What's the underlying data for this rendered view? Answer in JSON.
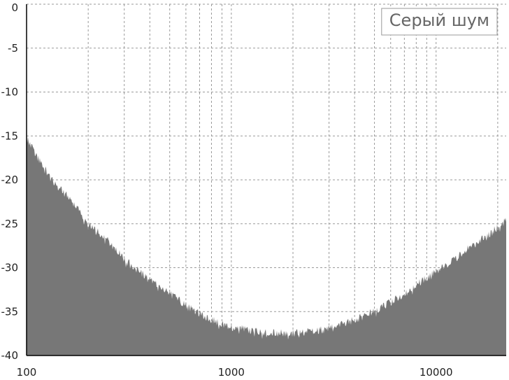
{
  "chart_data": {
    "type": "area",
    "legend": {
      "entries": [
        "Серый шум"
      ],
      "placement": "top-right"
    },
    "x_scale": "log",
    "xlim": [
      100,
      22000
    ],
    "ylim": [
      -40,
      0
    ],
    "grid": true,
    "x_ticks": [
      {
        "value": 100,
        "label": "100"
      },
      {
        "value": 1000,
        "label": "1000"
      },
      {
        "value": 10000,
        "label": "10000"
      }
    ],
    "y_ticks": [
      {
        "value": 0,
        "label": "0"
      },
      {
        "value": -5,
        "label": "-5"
      },
      {
        "value": -10,
        "label": "-10"
      },
      {
        "value": -15,
        "label": "-15"
      },
      {
        "value": -20,
        "label": "-20"
      },
      {
        "value": -25,
        "label": "-25"
      },
      {
        "value": -30,
        "label": "-30"
      },
      {
        "value": -35,
        "label": "-35"
      },
      {
        "value": -40,
        "label": "-40"
      }
    ],
    "series": [
      {
        "fill_color": "#777777",
        "x": [
          100,
          110,
          120,
          140,
          160,
          180,
          200,
          250,
          300,
          400,
          500,
          600,
          700,
          800,
          1000,
          1300,
          1600,
          2000,
          2500,
          3000,
          3500,
          4000,
          5000,
          6000,
          7000,
          8000,
          10000,
          12000,
          15000,
          18000,
          22000
        ],
        "y": [
          -14.8,
          -16.5,
          -18.0,
          -20.2,
          -21.5,
          -23.0,
          -24.5,
          -26.5,
          -28.5,
          -31.0,
          -32.5,
          -33.8,
          -34.8,
          -35.5,
          -36.3,
          -36.8,
          -37.0,
          -37.0,
          -36.8,
          -36.5,
          -36.0,
          -35.5,
          -34.5,
          -33.5,
          -32.5,
          -31.5,
          -30.0,
          -28.8,
          -27.0,
          -25.8,
          -24.2
        ]
      }
    ]
  },
  "colors": {
    "fill": "#777777",
    "grid": "#9a9a9a",
    "axis": "#000000",
    "background": "#ffffff"
  }
}
